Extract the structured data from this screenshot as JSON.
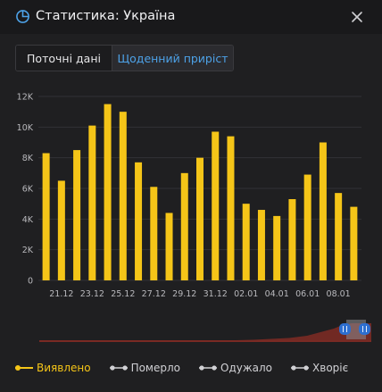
{
  "header": {
    "title": "Статистика: Україна",
    "icon": "pie-chart-icon",
    "close_icon": "close-icon"
  },
  "tabs": [
    {
      "label": "Поточні дані",
      "active": false
    },
    {
      "label": "Щоденний приріст",
      "active": true
    }
  ],
  "colors": {
    "bars": "#f5c518",
    "active_tab": "#4da2e8",
    "grid": "#323236",
    "slider_fill": "#7a2a24",
    "slider_handle": "#2d6fd0"
  },
  "legend": [
    {
      "label": "Виявлено",
      "active": true
    },
    {
      "label": "Померло",
      "active": false
    },
    {
      "label": "Одужало",
      "active": false
    },
    {
      "label": "Хворіє",
      "active": false
    }
  ],
  "chart_data": {
    "type": "bar",
    "categories": [
      "20.12",
      "21.12",
      "22.12",
      "23.12",
      "24.12",
      "25.12",
      "26.12",
      "27.12",
      "28.12",
      "29.12",
      "30.12",
      "31.12",
      "01.01",
      "02.01",
      "03.01",
      "04.01",
      "05.01",
      "06.01",
      "07.01",
      "08.01",
      "09.01"
    ],
    "x_tick_labels": [
      "21.12",
      "23.12",
      "25.12",
      "27.12",
      "29.12",
      "31.12",
      "02.01",
      "04.01",
      "06.01",
      "08.01"
    ],
    "series": [
      {
        "values": [
          8300,
          6500,
          8500,
          10100,
          11500,
          11000,
          7700,
          6100,
          4400,
          7000,
          8000,
          9700,
          9400,
          5000,
          4600,
          4200,
          5300,
          6900,
          9000,
          5700,
          4800
        ]
      }
    ],
    "y_ticks": [
      "0",
      "2K",
      "4K",
      "6K",
      "8K",
      "10K",
      "12K"
    ],
    "ylim": [
      0,
      12000
    ],
    "grid": true,
    "legend_position": "bottom-left"
  }
}
